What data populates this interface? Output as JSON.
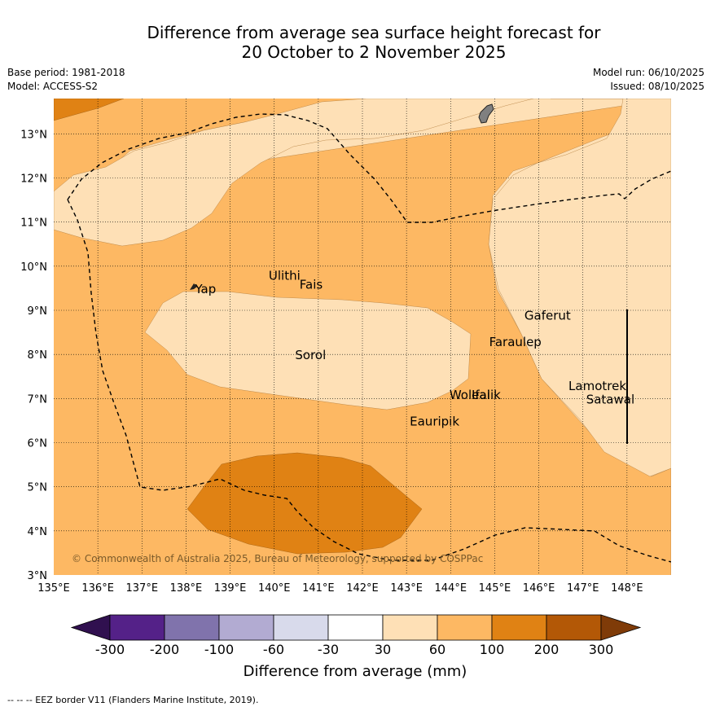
{
  "title_line1": "Difference from average sea surface height forecast for",
  "title_line2": "20 October to 2 November 2025",
  "meta": {
    "base_period": "Base period: 1981-2018",
    "model": "Model: ACCESS-S2",
    "model_run": "Model run: 06/10/2025",
    "issued": "Issued: 08/10/2025"
  },
  "axes": {
    "lat_labels": [
      "13°N",
      "12°N",
      "11°N",
      "10°N",
      "9°N",
      "8°N",
      "7°N",
      "6°N",
      "5°N",
      "4°N",
      "3°N"
    ],
    "lon_labels": [
      "135°E",
      "136°E",
      "137°E",
      "138°E",
      "139°E",
      "140°E",
      "141°E",
      "142°E",
      "143°E",
      "144°E",
      "145°E",
      "146°E",
      "147°E",
      "148°E"
    ]
  },
  "places": [
    {
      "name": "Ulithi",
      "lon": 139.8,
      "lat": 9.8
    },
    {
      "name": "Fais",
      "lon": 140.5,
      "lat": 9.6
    },
    {
      "name": "Yap",
      "lon": 138.13,
      "lat": 9.5
    },
    {
      "name": "Gaferut",
      "lon": 145.6,
      "lat": 8.9
    },
    {
      "name": "Faraulep",
      "lon": 144.8,
      "lat": 8.3
    },
    {
      "name": "Sorol",
      "lon": 140.4,
      "lat": 8.0
    },
    {
      "name": "Lamotrek",
      "lon": 146.6,
      "lat": 7.3
    },
    {
      "name": "Woleai",
      "lon": 143.9,
      "lat": 7.1
    },
    {
      "name": "Ifalik",
      "lon": 144.4,
      "lat": 7.1
    },
    {
      "name": "Satawal",
      "lon": 147.0,
      "lat": 7.0
    },
    {
      "name": "Eauripik",
      "lon": 143.0,
      "lat": 6.5
    }
  ],
  "copyright": "© Commonwealth of Australia 2025, Bureau of Meteorology, supported by COSPPac",
  "colorbar": {
    "label": "Difference from average (mm)",
    "ticks": [
      "-300",
      "-200",
      "-100",
      "-60",
      "-30",
      "30",
      "60",
      "100",
      "200",
      "300"
    ],
    "colors": [
      "#30104f",
      "#542188",
      "#8073ac",
      "#b2abd2",
      "#d8daeb",
      "#ffffff",
      "#fee0b6",
      "#fdb863",
      "#e08214",
      "#b35806",
      "#7f3b08"
    ]
  },
  "footer": "--  --  -- EEZ border V11 (Flanders Marine Institute, 2019)."
}
